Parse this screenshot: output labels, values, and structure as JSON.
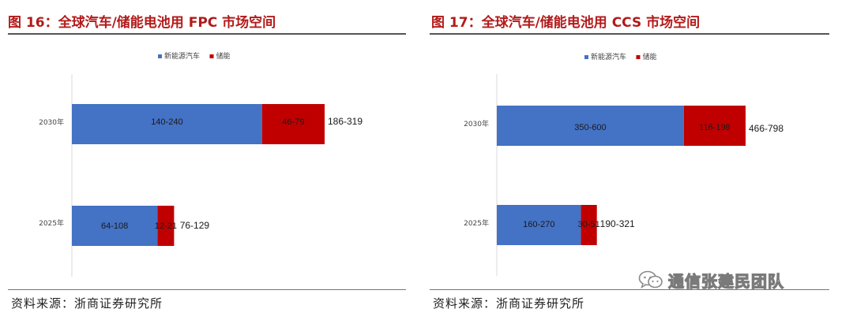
{
  "colors": {
    "new_energy_vehicle": "#4472c4",
    "energy_storage": "#c00000",
    "title": "#b31a1a"
  },
  "source_label": "资料来源：浙商证券研究所",
  "watermark": {
    "text": "通信张建民团队",
    "icon": "wechat-icon"
  },
  "chart_data": [
    {
      "type": "bar",
      "orientation": "horizontal",
      "stacked": true,
      "title": "图 16：全球汽车/储能电池用 FPC 市场空间",
      "categories": [
        "2030年",
        "2025年"
      ],
      "series": [
        {
          "name": "新能源汽车",
          "values": [
            240,
            108
          ],
          "labels": [
            "140-240",
            "64-108"
          ]
        },
        {
          "name": "储能",
          "values": [
            79,
            21
          ],
          "labels": [
            "46-79",
            "12-21"
          ]
        }
      ],
      "totals": [
        "186-319",
        "76-129"
      ],
      "xlim": [
        0,
        319
      ],
      "legend": "top-center",
      "grid": false
    },
    {
      "type": "bar",
      "orientation": "horizontal",
      "stacked": true,
      "title": "图 17：全球汽车/储能电池用 CCS 市场空间",
      "categories": [
        "2030年",
        "2025年"
      ],
      "series": [
        {
          "name": "新能源汽车",
          "values": [
            600,
            270
          ],
          "labels": [
            "350-600",
            "160-270"
          ]
        },
        {
          "name": "储能",
          "values": [
            198,
            51
          ],
          "labels": [
            "116-198",
            "30-51"
          ]
        }
      ],
      "totals": [
        "466-798",
        "190-321"
      ],
      "xlim": [
        0,
        798
      ],
      "legend": "top-center",
      "grid": false
    }
  ]
}
